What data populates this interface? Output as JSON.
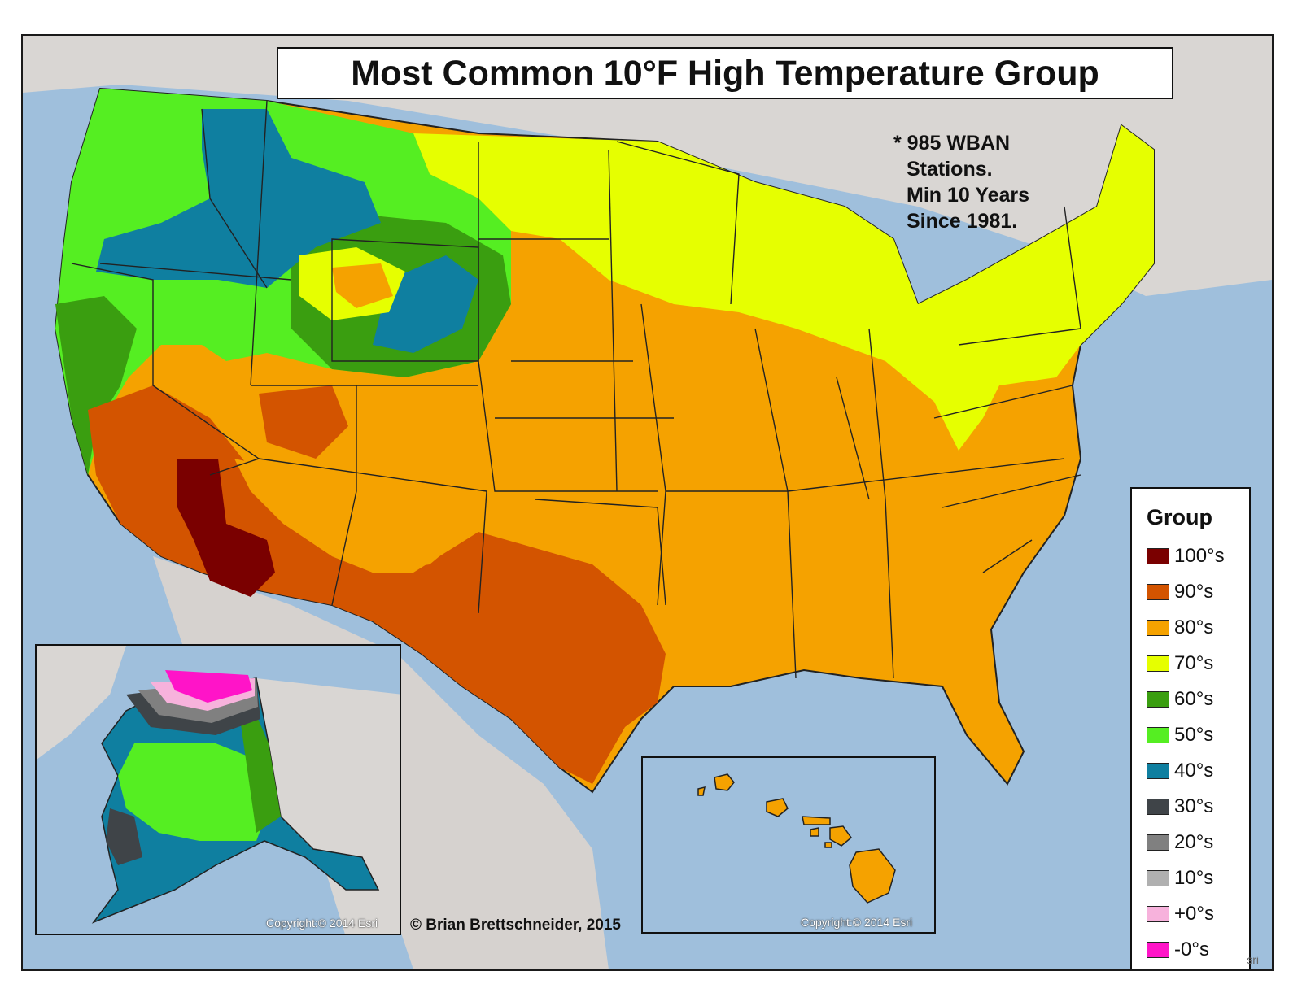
{
  "title": "Most Common 10°F High Temperature Group",
  "note": {
    "line1": "* 985 WBAN",
    "line2": "Stations.",
    "line3": "Min 10 Years",
    "line4": "Since 1981."
  },
  "legend": {
    "title": "Group",
    "items": [
      {
        "label": "100°s",
        "color": "#7a0000"
      },
      {
        "label": "90°s",
        "color": "#d35400"
      },
      {
        "label": "80°s",
        "color": "#f5a200"
      },
      {
        "label": "70°s",
        "color": "#e6ff00"
      },
      {
        "label": "60°s",
        "color": "#3a9e10"
      },
      {
        "label": "50°s",
        "color": "#55ee22"
      },
      {
        "label": "40°s",
        "color": "#0f7fa0"
      },
      {
        "label": "30°s",
        "color": "#3f4448"
      },
      {
        "label": "20°s",
        "color": "#808080"
      },
      {
        "label": "10°s",
        "color": "#b0b0b0"
      },
      {
        "label": "+0°s",
        "color": "#f7b2dc"
      },
      {
        "label": "-0°s",
        "color": "#ff14c8"
      }
    ]
  },
  "insets": {
    "alaska_copyright": "Copyright:© 2014 Esri",
    "hawaii_copyright": "Copyright:© 2014 Esri"
  },
  "author": "© Brian Brettschneider, 2015",
  "corner_credit": "sri"
}
